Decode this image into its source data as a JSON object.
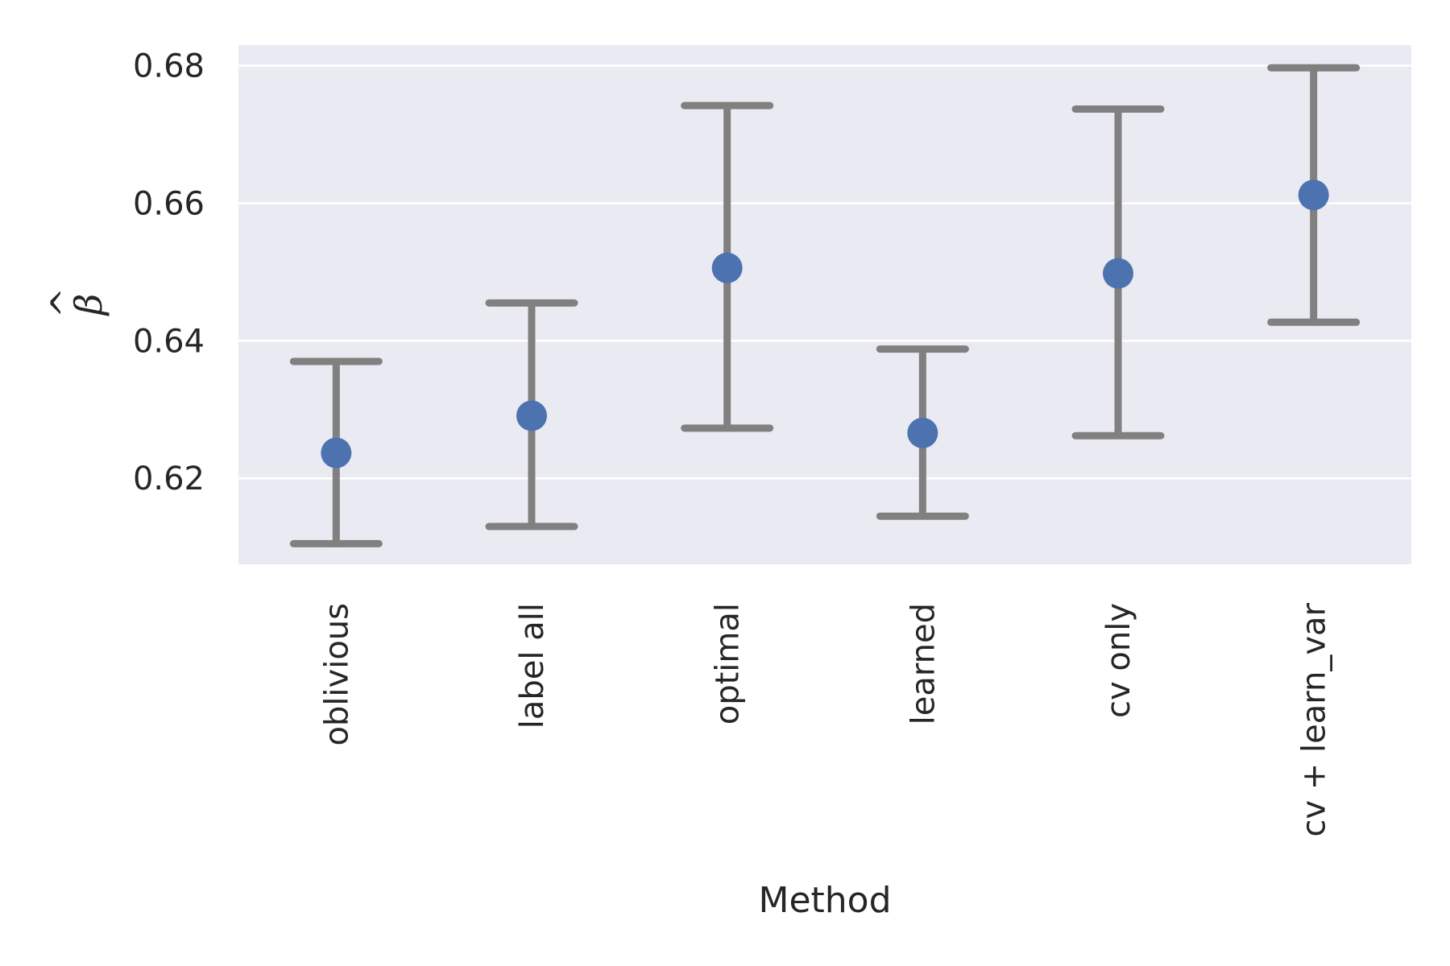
{
  "chart_data": {
    "type": "scatter",
    "categories": [
      "oblivious",
      "label all",
      "optimal",
      "learned",
      "cv only",
      "cv + learn_var"
    ],
    "values": [
      0.6237,
      0.6291,
      0.6506,
      0.6266,
      0.6498,
      0.6612
    ],
    "error_low": [
      0.6105,
      0.613,
      0.6273,
      0.6145,
      0.6262,
      0.6427
    ],
    "error_high": [
      0.637,
      0.6455,
      0.6742,
      0.6388,
      0.6737,
      0.6797
    ],
    "title": "",
    "xlabel": "Method",
    "ylabel": "β",
    "ylim": [
      0.6075,
      0.683
    ],
    "yticks": [
      0.62,
      0.64,
      0.66,
      0.68
    ],
    "ytick_labels": [
      "0.62",
      "0.64",
      "0.66",
      "0.68"
    ],
    "grid": true,
    "colors": {
      "point": "#4c72b0",
      "errorbar": "#808080",
      "background": "#eaeaf2",
      "grid": "#ffffff"
    }
  }
}
